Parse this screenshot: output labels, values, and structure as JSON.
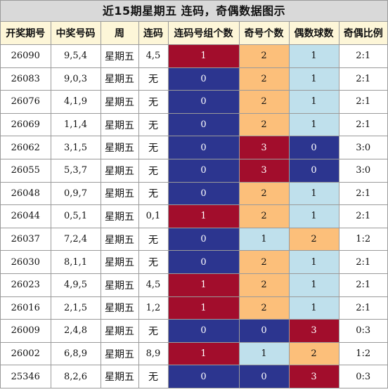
{
  "title": "近15期星期五 连码，奇偶数据图示",
  "headers": [
    "开奖期号",
    "中奖号码",
    "周",
    "连码",
    "连码号组个数",
    "奇号个数",
    "偶数球数",
    "奇偶比例"
  ],
  "colors": {
    "red": "#a20d2c",
    "blue": "#2c358f",
    "orange": "#fcbf7a",
    "lightblue": "#bfe0ec",
    "header_bg": "#fdf6d8",
    "title_bg": "#d9d9d9"
  },
  "rows": [
    {
      "issue": "26090",
      "numbers": "9,5,4",
      "week": "星期五",
      "lianma": "4,5",
      "groups": "1",
      "odd": "2",
      "even": "1",
      "ratio": "2:1"
    },
    {
      "issue": "26083",
      "numbers": "9,0,3",
      "week": "星期五",
      "lianma": "无",
      "groups": "0",
      "odd": "2",
      "even": "1",
      "ratio": "2:1"
    },
    {
      "issue": "26076",
      "numbers": "4,1,9",
      "week": "星期五",
      "lianma": "无",
      "groups": "0",
      "odd": "2",
      "even": "1",
      "ratio": "2:1"
    },
    {
      "issue": "26069",
      "numbers": "1,1,4",
      "week": "星期五",
      "lianma": "无",
      "groups": "0",
      "odd": "2",
      "even": "1",
      "ratio": "2:1"
    },
    {
      "issue": "26062",
      "numbers": "3,1,5",
      "week": "星期五",
      "lianma": "无",
      "groups": "0",
      "odd": "3",
      "even": "0",
      "ratio": "3:0"
    },
    {
      "issue": "26055",
      "numbers": "5,3,7",
      "week": "星期五",
      "lianma": "无",
      "groups": "0",
      "odd": "3",
      "even": "0",
      "ratio": "3:0"
    },
    {
      "issue": "26048",
      "numbers": "0,9,7",
      "week": "星期五",
      "lianma": "无",
      "groups": "0",
      "odd": "2",
      "even": "1",
      "ratio": "2:1"
    },
    {
      "issue": "26044",
      "numbers": "0,5,1",
      "week": "星期五",
      "lianma": "0,1",
      "groups": "1",
      "odd": "2",
      "even": "1",
      "ratio": "2:1"
    },
    {
      "issue": "26037",
      "numbers": "7,2,4",
      "week": "星期五",
      "lianma": "无",
      "groups": "0",
      "odd": "1",
      "even": "2",
      "ratio": "1:2"
    },
    {
      "issue": "26030",
      "numbers": "8,1,1",
      "week": "星期五",
      "lianma": "无",
      "groups": "0",
      "odd": "2",
      "even": "1",
      "ratio": "2:1"
    },
    {
      "issue": "26023",
      "numbers": "4,9,5",
      "week": "星期五",
      "lianma": "4,5",
      "groups": "1",
      "odd": "2",
      "even": "1",
      "ratio": "2:1"
    },
    {
      "issue": "26016",
      "numbers": "2,1,5",
      "week": "星期五",
      "lianma": "1,2",
      "groups": "1",
      "odd": "2",
      "even": "1",
      "ratio": "2:1"
    },
    {
      "issue": "26009",
      "numbers": "2,4,8",
      "week": "星期五",
      "lianma": "无",
      "groups": "0",
      "odd": "0",
      "even": "3",
      "ratio": "0:3"
    },
    {
      "issue": "26002",
      "numbers": "6,8,9",
      "week": "星期五",
      "lianma": "8,9",
      "groups": "1",
      "odd": "1",
      "even": "2",
      "ratio": "1:2"
    },
    {
      "issue": "25346",
      "numbers": "8,2,6",
      "week": "星期五",
      "lianma": "无",
      "groups": "0",
      "odd": "0",
      "even": "3",
      "ratio": "0:3"
    }
  ]
}
